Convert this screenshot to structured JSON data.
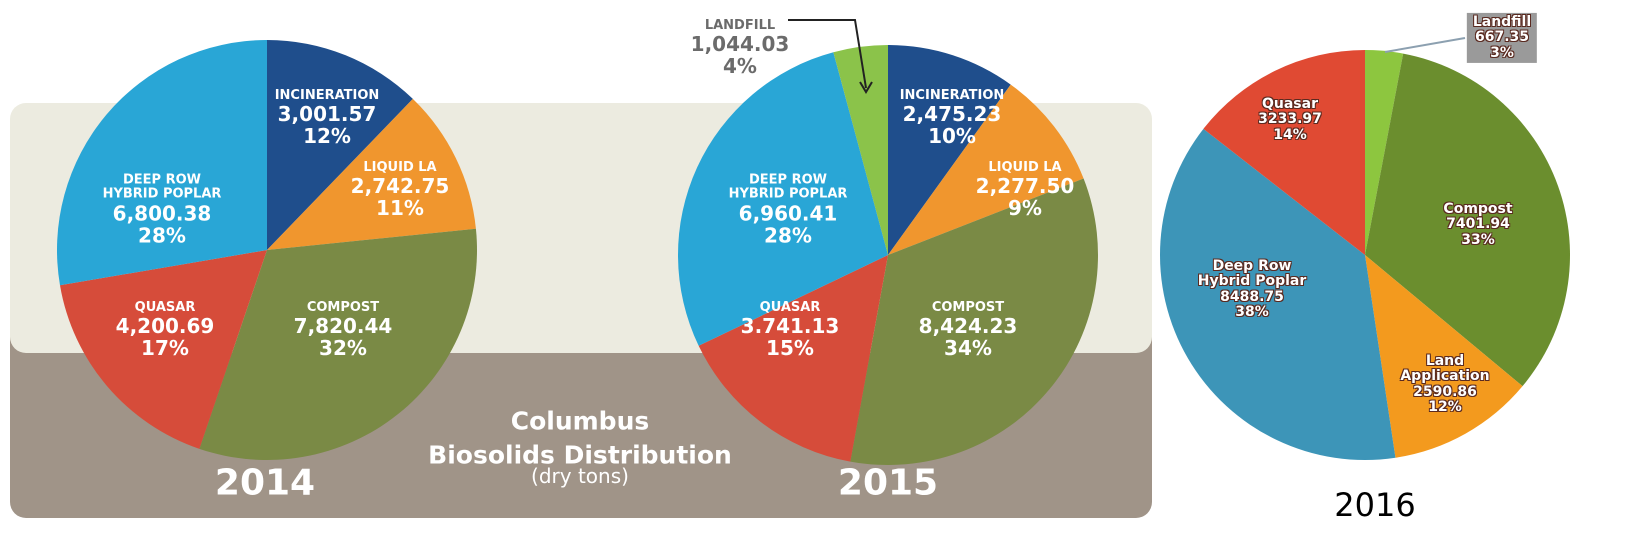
{
  "title": "Columbus\nBiosolids Distribution",
  "subtitle": "(dry tons)",
  "chart_data": [
    {
      "type": "pie",
      "title": "2014",
      "categories": [
        "INCINERATION",
        "LIQUID LA",
        "COMPOST",
        "QUASAR",
        "DEEP ROW\nHYBRID POPLAR"
      ],
      "values": [
        3001.57,
        2742.75,
        7820.44,
        4200.69,
        6800.38
      ],
      "value_labels": [
        "3,001.57",
        "2,742.75",
        "7,820.44",
        "4,200.69",
        "6,800.38"
      ],
      "percentages": [
        12,
        11,
        32,
        17,
        28
      ],
      "percentage_labels": [
        "12%",
        "11%",
        "32%",
        "17%",
        "28%"
      ],
      "colors": [
        "#1f4e8c",
        "#f0962e",
        "#7a8a45",
        "#d64c3a",
        "#29a6d6"
      ]
    },
    {
      "type": "pie",
      "title": "2015",
      "categories": [
        "INCINERATION",
        "LIQUID LA",
        "COMPOST",
        "QUASAR",
        "DEEP ROW\nHYBRID POPLAR",
        "LANDFILL"
      ],
      "values": [
        2475.23,
        2277.5,
        8424.23,
        3741.13,
        6960.41,
        1044.03
      ],
      "value_labels": [
        "2,475.23",
        "2,277.50",
        "8,424.23",
        "3.741.13",
        "6,960.41",
        "1,044.03"
      ],
      "percentages": [
        10,
        9,
        34,
        15,
        28,
        4
      ],
      "percentage_labels": [
        "10%",
        "9%",
        "34%",
        "15%",
        "28%",
        "4%"
      ],
      "colors": [
        "#1f4e8c",
        "#f0962e",
        "#7a8a45",
        "#d64c3a",
        "#29a6d6",
        "#8bc34a"
      ]
    },
    {
      "type": "pie",
      "title": "2016",
      "categories": [
        "Landfill",
        "Compost",
        "Land\nApplication",
        "Deep Row\nHybrid Poplar",
        "Quasar"
      ],
      "values": [
        667.35,
        7401.94,
        2590.86,
        8488.75,
        3233.97
      ],
      "percentages": [
        3,
        33,
        12,
        38,
        14
      ],
      "percentage_labels": [
        "3%",
        "33%",
        "12%",
        "38%",
        "14%"
      ],
      "colors": [
        "#8dc63f",
        "#6b8e2e",
        "#f39a1e",
        "#3d95b8",
        "#e04a33"
      ]
    }
  ]
}
